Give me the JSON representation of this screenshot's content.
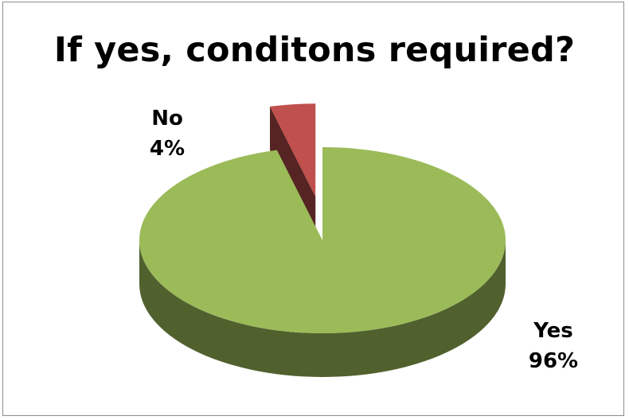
{
  "chart_data": {
    "type": "pie",
    "title": "If yes, conditons required?",
    "slices": [
      {
        "name": "Yes",
        "value": 96,
        "label": "96%",
        "color": "#9bbb59"
      },
      {
        "name": "No",
        "value": 4,
        "label": "4%",
        "color": "#c0504d"
      }
    ],
    "style": "3d-exploded",
    "legend": "none"
  }
}
